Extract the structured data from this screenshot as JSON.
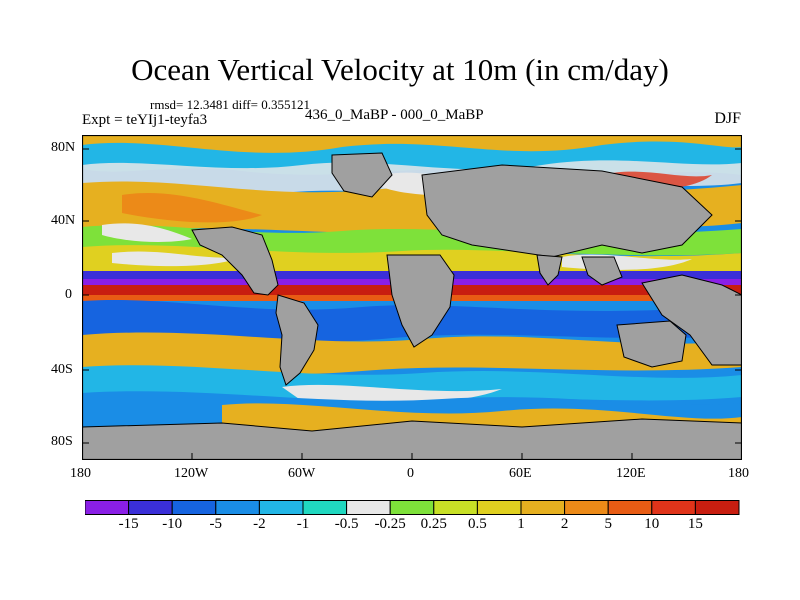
{
  "title": "Ocean Vertical Velocity at 10m (in cm/day)",
  "stats": "rmsd= 12.3481  diff= 0.355121",
  "expt_label": "Expt = teYIj1-teyfa3",
  "experiment": "436_0_MaBP - 000_0_MaBP",
  "season": "DJF",
  "map": {
    "lat_ticks": [
      "80N",
      "40N",
      "0",
      "40S",
      "80S"
    ],
    "lon_ticks": [
      "180",
      "120W",
      "60W",
      "0",
      "60E",
      "120E",
      "180"
    ],
    "land_color": "#a0a0a0"
  },
  "colorbar": {
    "colors": [
      "#8a1fe6",
      "#3a2fd8",
      "#1664e0",
      "#1a8de6",
      "#22b6e6",
      "#20d8c0",
      "#e8e8e8",
      "#7ee13a",
      "#c8e026",
      "#e0d020",
      "#e6b020",
      "#ec8a18",
      "#e85c14",
      "#e0341a",
      "#c81e10"
    ],
    "labels": [
      "-15",
      "-10",
      "-5",
      "-2",
      "-1",
      "-0.5",
      "-0.25",
      "0.25",
      "0.5",
      "1",
      "2",
      "5",
      "10",
      "15"
    ]
  }
}
